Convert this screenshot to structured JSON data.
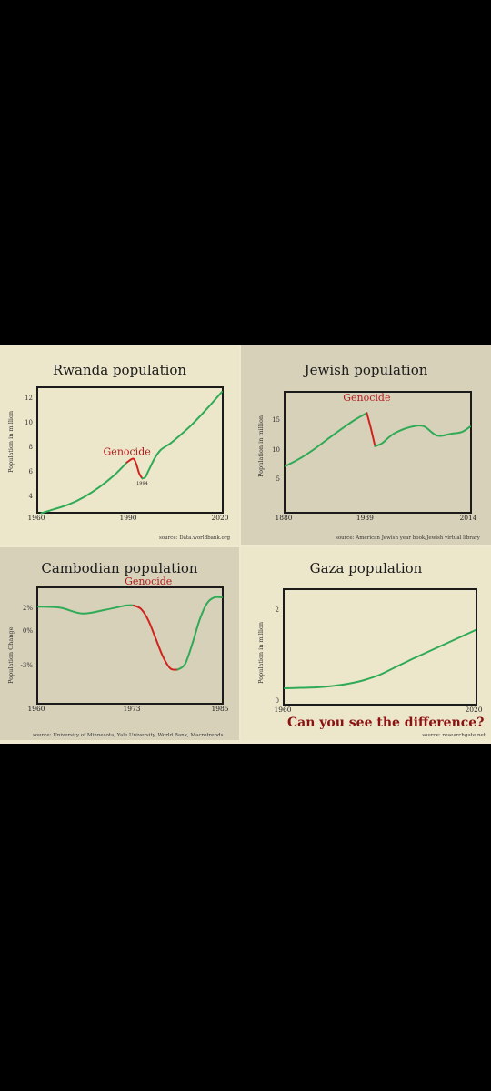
{
  "colors": {
    "growth_line": "#2faa55",
    "genocide_line": "#d0231d",
    "genocide_text": "#b11d1d",
    "question_text": "#8c1212"
  },
  "chart_data": [
    {
      "type": "line",
      "title": "Rwanda population",
      "ylabel": "Population in million",
      "yticks": [
        "12",
        "10",
        "8",
        "6",
        "4"
      ],
      "xticks": [
        "1960",
        "1990",
        "2020"
      ],
      "xlim": [
        1960,
        2020
      ],
      "ylim": [
        3,
        13
      ],
      "series": [
        {
          "segment": "growth",
          "x": [
            1961,
            1965,
            1970,
            1975,
            1980,
            1985,
            1989
          ],
          "y": [
            2.9,
            3.2,
            3.6,
            4.2,
            5.0,
            6.0,
            7.0
          ]
        },
        {
          "segment": "genocide",
          "x": [
            1989,
            1991,
            1992,
            1993,
            1994
          ],
          "y": [
            7.0,
            7.3,
            6.9,
            6.1,
            5.7
          ]
        },
        {
          "segment": "growth",
          "x": [
            1994,
            1995,
            1996,
            1998,
            2000,
            2003,
            2005,
            2010,
            2015,
            2020
          ],
          "y": [
            5.7,
            5.8,
            6.3,
            7.3,
            8.0,
            8.5,
            8.9,
            10.0,
            11.3,
            12.7
          ]
        }
      ],
      "annotations": [
        "Genocide",
        "1994"
      ],
      "source": "source: Data.worldbank.org"
    },
    {
      "type": "line",
      "title": "Jewish population",
      "ylabel": "Population in million",
      "yticks": [
        "15",
        "10",
        "5"
      ],
      "xticks": [
        "1880",
        "1939",
        "2014"
      ],
      "xlim": [
        1880,
        2014
      ],
      "ylim": [
        0,
        20
      ],
      "series": [
        {
          "segment": "growth",
          "x": [
            1880,
            1890,
            1900,
            1910,
            1920,
            1930,
            1939
          ],
          "y": [
            7.7,
            8.9,
            10.4,
            12.1,
            13.8,
            15.4,
            16.6
          ]
        },
        {
          "segment": "genocide",
          "x": [
            1939,
            1942,
            1945
          ],
          "y": [
            16.6,
            14.0,
            11.0
          ]
        },
        {
          "segment": "growth",
          "x": [
            1945,
            1950,
            1955,
            1960,
            1970,
            1980,
            1990,
            2000,
            2008,
            2014
          ],
          "y": [
            11.0,
            11.5,
            12.5,
            13.3,
            14.2,
            14.4,
            12.8,
            13.1,
            13.4,
            14.3
          ]
        }
      ],
      "annotations": [
        "Genocide"
      ],
      "source": "source: American Jewish year book/Jewish virtual library"
    },
    {
      "type": "line",
      "title": "Cambodian population",
      "ylabel": "Population Change",
      "yticks": [
        "2%",
        "0%",
        "-3%"
      ],
      "xticks": [
        "1960",
        "1973",
        "1985"
      ],
      "xlim": [
        1960,
        1985
      ],
      "ylim": [
        -6,
        4
      ],
      "series": [
        {
          "segment": "growth",
          "x": [
            1960,
            1963,
            1966,
            1969,
            1972,
            1973
          ],
          "y": [
            2.4,
            2.3,
            1.8,
            2.1,
            2.5,
            2.5
          ]
        },
        {
          "segment": "genocide",
          "x": [
            1973,
            1974,
            1975,
            1976,
            1977,
            1978,
            1979
          ],
          "y": [
            2.5,
            2.2,
            1.2,
            -0.4,
            -2.0,
            -3.0,
            -3.1
          ]
        },
        {
          "segment": "growth",
          "x": [
            1979,
            1980,
            1981,
            1982,
            1983,
            1984,
            1985
          ],
          "y": [
            -3.1,
            -2.6,
            -0.8,
            1.3,
            2.7,
            3.2,
            3.2
          ]
        }
      ],
      "annotations": [
        "Genocide"
      ],
      "source": "source: University of Minnesota, Yale University, World Bank, Macrotrends"
    },
    {
      "type": "line",
      "title": "Gaza population",
      "ylabel": "Population in million",
      "yticks": [
        "2",
        "0"
      ],
      "xticks": [
        "1960",
        "2020"
      ],
      "xlim": [
        1960,
        2020
      ],
      "ylim": [
        0,
        2.5
      ],
      "series": [
        {
          "segment": "growth",
          "x": [
            1960,
            1965,
            1970,
            1975,
            1980,
            1985,
            1990,
            1995,
            2000,
            2005,
            2010,
            2015,
            2020
          ],
          "y": [
            0.34,
            0.35,
            0.36,
            0.39,
            0.44,
            0.52,
            0.64,
            0.81,
            0.98,
            1.14,
            1.3,
            1.46,
            1.62
          ]
        }
      ],
      "annotations": [],
      "source": "source: researchgate.net"
    }
  ],
  "caption": "Can you see the difference?"
}
